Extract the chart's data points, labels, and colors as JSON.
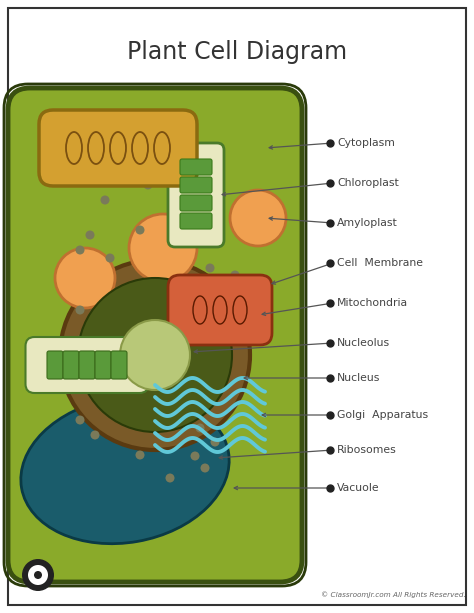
{
  "title": "Plant Cell Diagram",
  "bg_color": "#ffffff",
  "cell_fill": "#8aaa2a",
  "cell_border_dark": "#3a5010",
  "cell_border_light": "#5a7a1a",
  "vacuole_fill": "#1a5c6b",
  "vacuole_border": "#0a3a45",
  "nucleus_ring_fill": "#7a5a28",
  "nucleus_ring_border": "#5a3a10",
  "nucleus_inner_fill": "#4a5a18",
  "nucleus_inner_border": "#2a3a08",
  "nucleolus_fill": "#b8c878",
  "nucleolus_border": "#8a9a48",
  "amyloplast_fill": "#f0a050",
  "amyloplast_border": "#c07030",
  "chloroplast_small_fill": "#e8e8c0",
  "chloroplast_small_border": "#4a7a2a",
  "chloroplast_stripe": "#5a9a3a",
  "chloroplast_large_fill": "#d4a030",
  "chloroplast_large_border": "#8a6a10",
  "chloroplast_large_inner": "#7a5010",
  "mito_fill": "#d4603a",
  "mito_border": "#8a3010",
  "golgi_color": "#60c8d8",
  "ribosome_color": "#7a7a5a",
  "label_color": "#444444",
  "footer": "© ClassroomJr.com All Rights Reserved.",
  "labels": [
    "Cytoplasm",
    "Chloroplast",
    "Amyloplast",
    "Cell  Membrane",
    "Mitochondria",
    "Nucleolus",
    "Nucleus",
    "Golgi  Apparatus",
    "Ribosomes",
    "Vacuole"
  ]
}
